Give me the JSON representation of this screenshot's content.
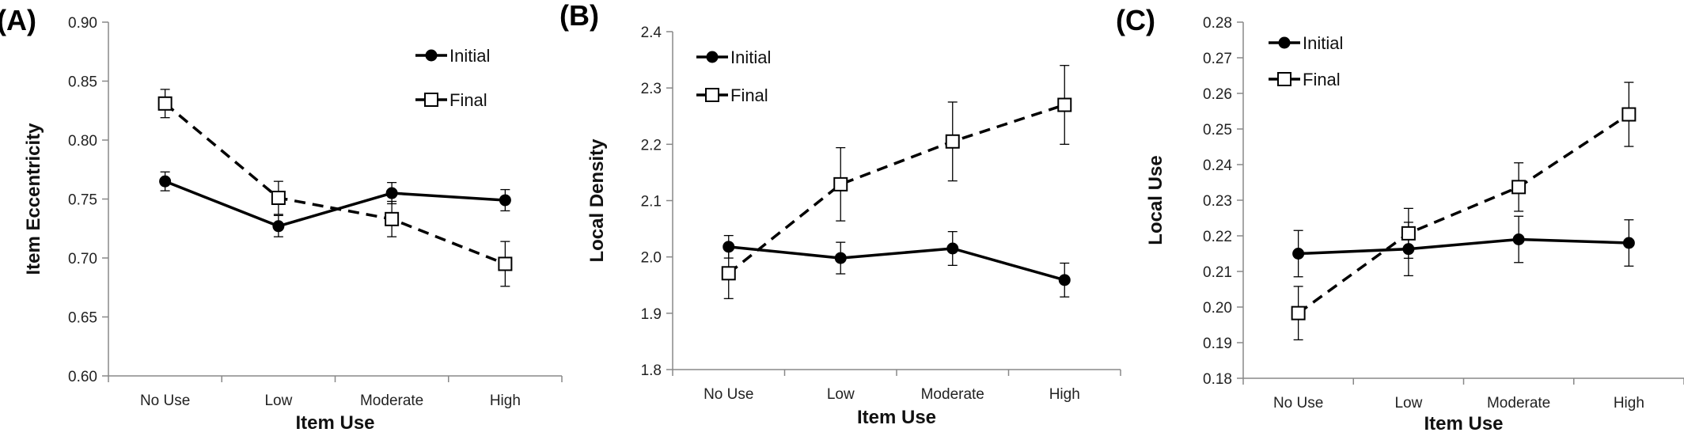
{
  "chart_data": [
    {
      "panel": "(A)",
      "type": "line",
      "xlabel": "Item Use",
      "ylabel": "Item Eccentricity",
      "categories": [
        "No Use",
        "Low",
        "Moderate",
        "High"
      ],
      "ylim": [
        0.6,
        0.9
      ],
      "yticks": [
        "0.60",
        "0.65",
        "0.70",
        "0.75",
        "0.80",
        "0.85",
        "0.90"
      ],
      "legend_position": "top-right",
      "series": [
        {
          "name": "Initial",
          "marker": "filled-circle",
          "line": "solid",
          "values": [
            0.765,
            0.727,
            0.755,
            0.749
          ],
          "errors": [
            0.008,
            0.009,
            0.009,
            0.009
          ]
        },
        {
          "name": "Final",
          "marker": "open-square",
          "line": "dashed",
          "values": [
            0.831,
            0.751,
            0.733,
            0.695
          ],
          "errors": [
            0.012,
            0.014,
            0.015,
            0.019
          ]
        }
      ]
    },
    {
      "panel": "(B)",
      "type": "line",
      "xlabel": "Item Use",
      "ylabel": "Local Density",
      "categories": [
        "No Use",
        "Low",
        "Moderate",
        "High"
      ],
      "ylim": [
        1.8,
        2.4
      ],
      "yticks": [
        "1.8",
        "1.9",
        "2.0",
        "2.1",
        "2.2",
        "2.3",
        "2.4"
      ],
      "legend_position": "top-left",
      "series": [
        {
          "name": "Initial",
          "marker": "filled-circle",
          "line": "solid",
          "values": [
            2.018,
            1.998,
            2.015,
            1.959
          ],
          "errors": [
            0.02,
            0.028,
            0.03,
            0.03
          ]
        },
        {
          "name": "Final",
          "marker": "open-square",
          "line": "dashed",
          "values": [
            1.971,
            2.129,
            2.205,
            2.27
          ],
          "errors": [
            0.045,
            0.065,
            0.07,
            0.07
          ]
        }
      ]
    },
    {
      "panel": "(C)",
      "type": "line",
      "xlabel": "Item Use",
      "ylabel": "Local Use",
      "categories": [
        "No Use",
        "Low",
        "Moderate",
        "High"
      ],
      "ylim": [
        0.18,
        0.28
      ],
      "yticks": [
        "0.18",
        "0.19",
        "0.20",
        "0.21",
        "0.22",
        "0.23",
        "0.24",
        "0.25",
        "0.26",
        "0.27",
        "0.28"
      ],
      "legend_position": "top-left",
      "series": [
        {
          "name": "Initial",
          "marker": "filled-circle",
          "line": "solid",
          "values": [
            0.215,
            0.2163,
            0.219,
            0.218
          ],
          "errors": [
            0.0065,
            0.0075,
            0.0065,
            0.0065
          ]
        },
        {
          "name": "Final",
          "marker": "open-square",
          "line": "dashed",
          "values": [
            0.1983,
            0.2207,
            0.2337,
            0.2541
          ],
          "errors": [
            0.0075,
            0.007,
            0.0068,
            0.009
          ]
        }
      ]
    }
  ]
}
